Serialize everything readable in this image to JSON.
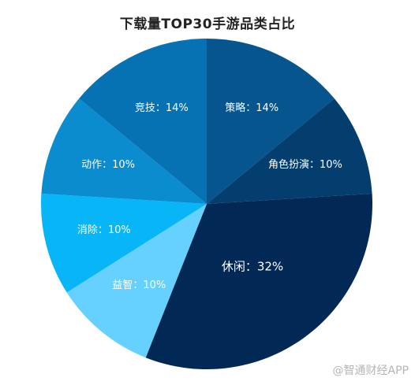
{
  "chart_data": {
    "type": "pie",
    "title": "下载量TOP30手游品类占比",
    "slices": [
      {
        "label": "策略：14%",
        "name": "策略",
        "value": 14,
        "color": "#06558F"
      },
      {
        "label": "角色扮演：10%",
        "name": "角色扮演",
        "value": 10,
        "color": "#033E6E"
      },
      {
        "label": "休闲：32%",
        "name": "休闲",
        "value": 32,
        "color": "#022855"
      },
      {
        "label": "益智：10%",
        "name": "益智",
        "value": 10,
        "color": "#66D1FF"
      },
      {
        "label": "消除：10%",
        "name": "消除",
        "value": 10,
        "color": "#08B5F7"
      },
      {
        "label": "动作：10%",
        "name": "动作",
        "value": 10,
        "color": "#0A8CCE"
      },
      {
        "label": "竞技：14%",
        "name": "竞技",
        "value": 14,
        "color": "#0672B3"
      }
    ]
  },
  "watermark": "@智通财经APP"
}
